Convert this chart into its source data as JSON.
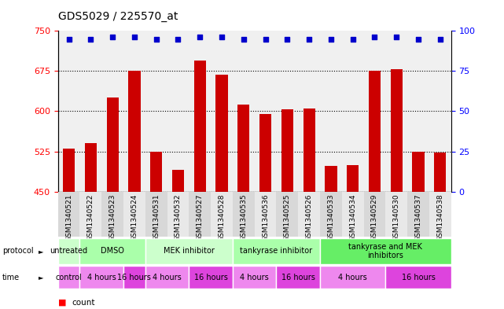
{
  "title": "GDS5029 / 225570_at",
  "samples": [
    "GSM1340521",
    "GSM1340522",
    "GSM1340523",
    "GSM1340524",
    "GSM1340531",
    "GSM1340532",
    "GSM1340527",
    "GSM1340528",
    "GSM1340535",
    "GSM1340536",
    "GSM1340525",
    "GSM1340526",
    "GSM1340533",
    "GSM1340534",
    "GSM1340529",
    "GSM1340530",
    "GSM1340537",
    "GSM1340538"
  ],
  "counts": [
    530,
    540,
    625,
    675,
    525,
    490,
    695,
    668,
    613,
    595,
    603,
    605,
    498,
    500,
    675,
    678,
    525,
    523
  ],
  "percentiles": [
    95,
    95,
    96,
    96,
    95,
    95,
    96,
    96,
    95,
    95,
    95,
    95,
    95,
    95,
    96,
    96,
    95,
    95
  ],
  "ylim_left": [
    450,
    750
  ],
  "ylim_right": [
    0,
    100
  ],
  "yticks_left": [
    450,
    525,
    600,
    675,
    750
  ],
  "yticks_right": [
    0,
    25,
    50,
    75,
    100
  ],
  "bar_color": "#cc0000",
  "dot_color": "#0000cc",
  "protocol_row": [
    {
      "label": "untreated",
      "start": 0,
      "end": 1,
      "color": "#ccffcc"
    },
    {
      "label": "DMSO",
      "start": 1,
      "end": 4,
      "color": "#aaffaa"
    },
    {
      "label": "MEK inhibitor",
      "start": 4,
      "end": 8,
      "color": "#ccffcc"
    },
    {
      "label": "tankyrase inhibitor",
      "start": 8,
      "end": 12,
      "color": "#aaffaa"
    },
    {
      "label": "tankyrase and MEK\ninhibitors",
      "start": 12,
      "end": 18,
      "color": "#66ee66"
    }
  ],
  "time_row": [
    {
      "label": "control",
      "start": 0,
      "end": 1,
      "color": "#ee88ee"
    },
    {
      "label": "4 hours",
      "start": 1,
      "end": 3,
      "color": "#ee88ee"
    },
    {
      "label": "16 hours",
      "start": 3,
      "end": 4,
      "color": "#dd44dd"
    },
    {
      "label": "4 hours",
      "start": 4,
      "end": 6,
      "color": "#ee88ee"
    },
    {
      "label": "16 hours",
      "start": 6,
      "end": 8,
      "color": "#dd44dd"
    },
    {
      "label": "4 hours",
      "start": 8,
      "end": 10,
      "color": "#ee88ee"
    },
    {
      "label": "16 hours",
      "start": 10,
      "end": 12,
      "color": "#dd44dd"
    },
    {
      "label": "4 hours",
      "start": 12,
      "end": 15,
      "color": "#ee88ee"
    },
    {
      "label": "16 hours",
      "start": 15,
      "end": 18,
      "color": "#dd44dd"
    }
  ]
}
